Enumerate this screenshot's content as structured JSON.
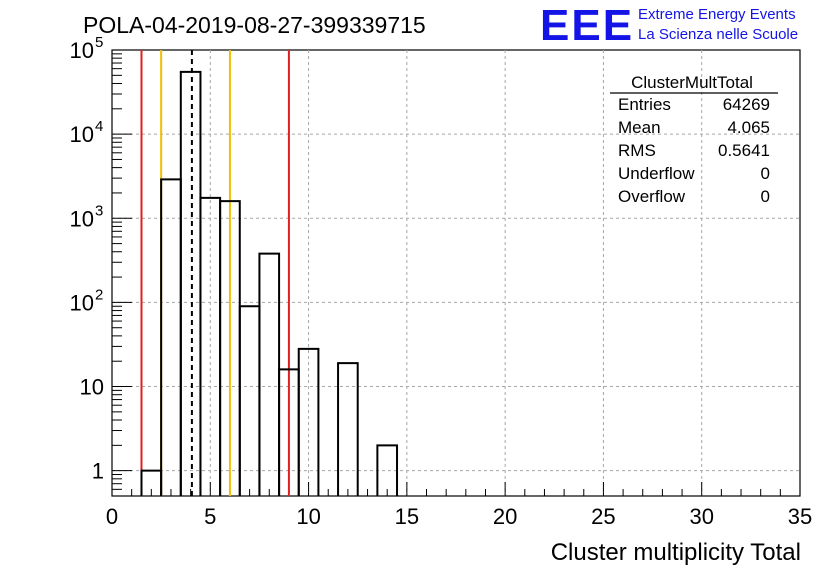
{
  "header": {
    "title": "POLA-04-2019-08-27-399339715",
    "logo_text": "EEE",
    "logo_line1": "Extreme Energy Events",
    "logo_line2": "La Scienza nelle Scuole",
    "logo_color": "#1414e6"
  },
  "stats": {
    "name": "ClusterMultTotal",
    "rows": [
      {
        "label": "Entries",
        "value": "64269"
      },
      {
        "label": "Mean",
        "value": "4.065"
      },
      {
        "label": "RMS",
        "value": "0.5641"
      },
      {
        "label": "Underflow",
        "value": "0"
      },
      {
        "label": "Overflow",
        "value": "0"
      }
    ]
  },
  "chart_data": {
    "type": "bar",
    "style": "step-histogram",
    "title": "POLA-04-2019-08-27-399339715",
    "xlabel": "Cluster multiplicity Total",
    "ylabel": "",
    "xlim": [
      0,
      35
    ],
    "ylim": [
      0.5,
      100000
    ],
    "ylog": true,
    "grid": true,
    "bin_width": 1,
    "bins": [
      {
        "x0": 1.5,
        "y": 1
      },
      {
        "x0": 2.5,
        "y": 2900
      },
      {
        "x0": 3.5,
        "y": 55000
      },
      {
        "x0": 4.5,
        "y": 1750
      },
      {
        "x0": 5.5,
        "y": 1600
      },
      {
        "x0": 6.5,
        "y": 90
      },
      {
        "x0": 7.5,
        "y": 380
      },
      {
        "x0": 8.5,
        "y": 16
      },
      {
        "x0": 9.5,
        "y": 28
      },
      {
        "x0": 11.5,
        "y": 19
      },
      {
        "x0": 13.5,
        "y": 2
      }
    ],
    "x_ticks": [
      "0",
      "5",
      "10",
      "15",
      "20",
      "25",
      "30",
      "35"
    ],
    "y_ticks": [
      {
        "value": 1,
        "label": "1",
        "sup": ""
      },
      {
        "value": 10,
        "label": "10",
        "sup": ""
      },
      {
        "value": 100,
        "label": "10",
        "sup": "2"
      },
      {
        "value": 1000,
        "label": "10",
        "sup": "3"
      },
      {
        "value": 10000,
        "label": "10",
        "sup": "4"
      },
      {
        "value": 100000,
        "label": "10",
        "sup": "5"
      }
    ],
    "vlines": [
      {
        "x": 1.5,
        "color": "#e02020",
        "style": "solid"
      },
      {
        "x": 2.5,
        "color": "#f0c000",
        "style": "solid"
      },
      {
        "x": 4.065,
        "color": "#000000",
        "style": "dashed"
      },
      {
        "x": 6.0,
        "color": "#f0c000",
        "style": "solid"
      },
      {
        "x": 9.0,
        "color": "#e02020",
        "style": "solid"
      }
    ]
  }
}
